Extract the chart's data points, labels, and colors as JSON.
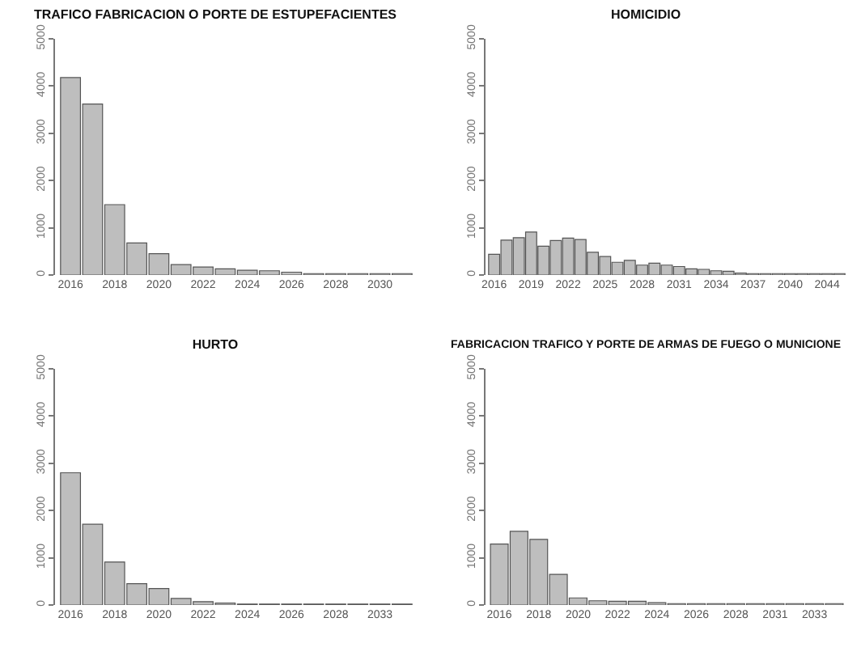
{
  "chart_data": [
    {
      "type": "bar",
      "title": "TRAFICO FABRICACION O PORTE DE ESTUPEFACIENTES",
      "categories": [
        "2016",
        null,
        "2018",
        null,
        "2020",
        null,
        "2022",
        null,
        "2024",
        null,
        "2026",
        null,
        "2028",
        null,
        "2030",
        null
      ],
      "series": [
        {
          "color": "#bebebe",
          "values": [
            4180,
            3620,
            1490,
            680,
            450,
            220,
            170,
            130,
            100,
            90,
            60,
            30,
            30,
            30,
            30,
            30
          ]
        }
      ],
      "ylim": [
        0,
        5000
      ],
      "yticks": [
        0,
        1000,
        2000,
        3000,
        4000,
        5000
      ]
    },
    {
      "type": "bar",
      "title": "HOMICIDIO",
      "categories": [
        "2016",
        null,
        null,
        "2019",
        null,
        null,
        "2022",
        null,
        null,
        "2025",
        null,
        null,
        "2028",
        null,
        null,
        "2031",
        null,
        null,
        "2034",
        null,
        null,
        "2037",
        null,
        null,
        "2040",
        null,
        null,
        "2044",
        null
      ],
      "series": [
        {
          "color": "#bebebe",
          "values": [
            440,
            740,
            790,
            910,
            610,
            730,
            780,
            750,
            480,
            390,
            270,
            310,
            210,
            250,
            210,
            180,
            130,
            120,
            90,
            80,
            40,
            30,
            30,
            30,
            30,
            30,
            30,
            30,
            30
          ]
        }
      ],
      "ylim": [
        0,
        5000
      ],
      "yticks": [
        0,
        1000,
        2000,
        3000,
        4000,
        5000
      ]
    },
    {
      "type": "bar",
      "title": "HURTO",
      "categories": [
        "2016",
        null,
        "2018",
        null,
        "2020",
        null,
        "2022",
        null,
        "2024",
        null,
        "2026",
        null,
        "2028",
        null,
        "2033",
        null
      ],
      "series": [
        {
          "color": "#bebebe",
          "values": [
            2800,
            1710,
            910,
            450,
            350,
            140,
            70,
            40,
            20,
            20,
            20,
            20,
            20,
            20,
            20,
            20
          ]
        }
      ],
      "ylim": [
        0,
        5000
      ],
      "yticks": [
        0,
        1000,
        2000,
        3000,
        4000,
        5000
      ]
    },
    {
      "type": "bar",
      "title": "FABRICACION TRAFICO Y PORTE DE ARMAS DE FUEGO O MUNICIONE",
      "categories": [
        "2016",
        null,
        "2018",
        null,
        "2020",
        null,
        "2022",
        null,
        "2024",
        null,
        "2026",
        null,
        "2028",
        null,
        "2031",
        null,
        "2033",
        null
      ],
      "series": [
        {
          "color": "#bebebe",
          "values": [
            1290,
            1560,
            1390,
            650,
            150,
            90,
            80,
            80,
            50,
            30,
            30,
            30,
            30,
            30,
            30,
            30,
            30,
            30
          ]
        }
      ],
      "ylim": [
        0,
        5000
      ],
      "yticks": [
        0,
        1000,
        2000,
        3000,
        4000,
        5000
      ]
    }
  ]
}
